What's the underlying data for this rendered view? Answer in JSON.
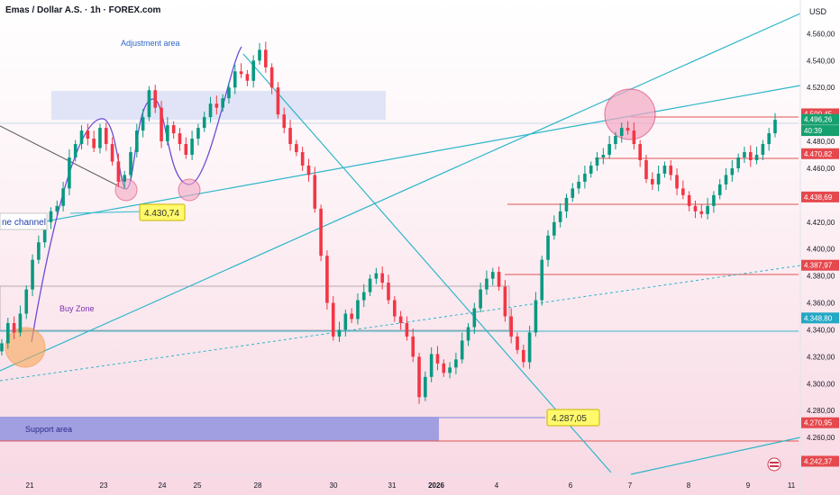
{
  "header": {
    "title": "Emas / Dollar A.S. · 1h · FOREX.com",
    "currency": "USD"
  },
  "chart_data": {
    "type": "candlestick",
    "ylim": [
      4232,
      4585
    ],
    "y_ticks": [
      "4.560,00",
      "4.540,00",
      "4.520,00",
      "4.480,00",
      "4.460,00",
      "4.420,00",
      "4.400,00",
      "4.380,00",
      "4.360,00",
      "4.340,00",
      "4.320,00",
      "4.300,00",
      "4.280,00",
      "4.260,00"
    ],
    "y_tick_values": [
      4560,
      4540,
      4520,
      4480,
      4460,
      4420,
      4400,
      4380,
      4360,
      4340,
      4320,
      4300,
      4280,
      4260
    ],
    "x_labels": [
      "21",
      "23",
      "24",
      "25",
      "28",
      "30",
      "31",
      "2026",
      "4",
      "6",
      "7",
      "8",
      "9",
      "11"
    ],
    "price_tags": [
      {
        "text": "4.500,45",
        "value": 4500.45,
        "style": "red"
      },
      {
        "text": "4.496,26",
        "value": 4496.26,
        "style": "green"
      },
      {
        "text": "40:39",
        "value": 4488,
        "style": "green"
      },
      {
        "text": "4.470,82",
        "value": 4470.82,
        "style": "red"
      },
      {
        "text": "4.438,69",
        "value": 4438.69,
        "style": "red"
      },
      {
        "text": "4.387,97",
        "value": 4387.97,
        "style": "red"
      },
      {
        "text": "4.348,80",
        "value": 4348.8,
        "style": "blue"
      },
      {
        "text": "4.270,95",
        "value": 4270.95,
        "style": "red"
      },
      {
        "text": "4.242,37",
        "value": 4242.37,
        "style": "red"
      }
    ],
    "annotations": {
      "adjustment_area": "Adjustment area",
      "buy_zone": "Buy Zone",
      "support_area": "Support area",
      "channel": "ne channel",
      "callout_1": "4.430,74",
      "callout_2": "4.287,05"
    },
    "closes": [
      4330,
      4345,
      4338,
      4352,
      4370,
      4392,
      4405,
      4420,
      4428,
      4432,
      4445,
      4468,
      4478,
      4488,
      4482,
      4475,
      4490,
      4478,
      4465,
      4450,
      4455,
      4472,
      4488,
      4498,
      4518,
      4505,
      4480,
      4492,
      4486,
      4478,
      4470,
      4482,
      4490,
      4498,
      4508,
      4505,
      4512,
      4520,
      4532,
      4530,
      4525,
      4540,
      4548,
      4535,
      4520,
      4500,
      4490,
      4478,
      4472,
      4462,
      4455,
      4430,
      4395,
      4360,
      4335,
      4340,
      4352,
      4348,
      4362,
      4368,
      4378,
      4382,
      4375,
      4362,
      4350,
      4345,
      4335,
      4320,
      4290,
      4305,
      4322,
      4315,
      4308,
      4312,
      4318,
      4332,
      4342,
      4356,
      4370,
      4378,
      4383,
      4372,
      4350,
      4335,
      4325,
      4316,
      4338,
      4362,
      4392,
      4410,
      4420,
      4428,
      4438,
      4445,
      4450,
      4456,
      4462,
      4468,
      4470,
      4478,
      4484,
      4490,
      4488,
      4478,
      4466,
      4452,
      4448,
      4456,
      4462,
      4455,
      4445,
      4440,
      4432,
      4428,
      4426,
      4432,
      4440,
      4448,
      4455,
      4460,
      4468,
      4472,
      4466,
      4470,
      4478,
      4486,
      4496
    ],
    "grid": false,
    "legend": "none"
  }
}
